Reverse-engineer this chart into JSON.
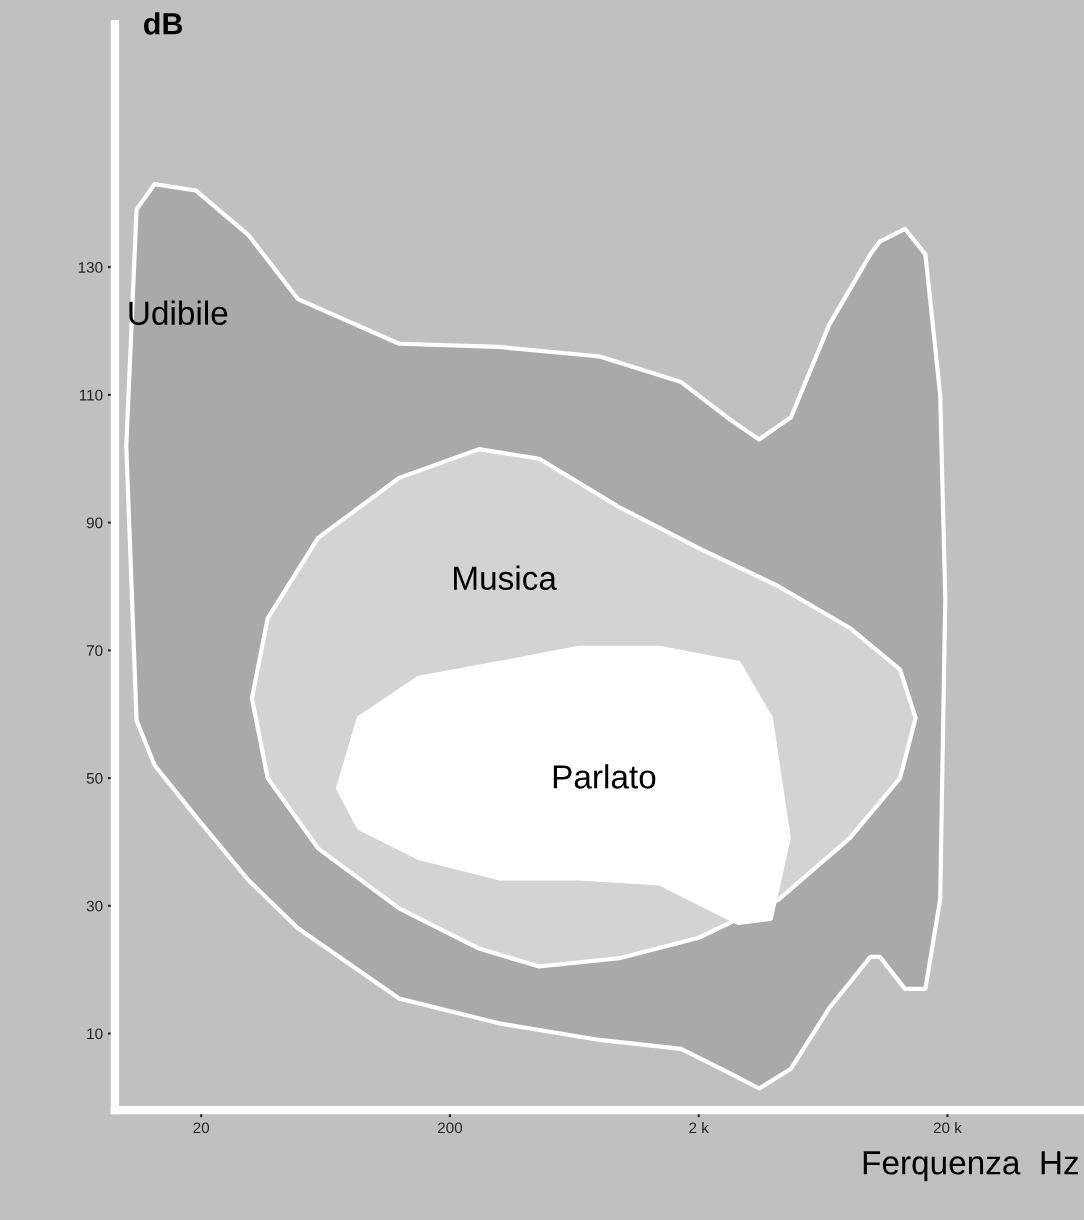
{
  "chart_data": {
    "type": "area",
    "xlabel": "Ferquenza  Hz",
    "ylabel": "dB",
    "log": "x",
    "xlim": [
      9,
      68000
    ],
    "ylim": [
      -2,
      168
    ],
    "xticks": [
      20,
      200,
      {
        "value": 2000,
        "label": "2 k"
      },
      {
        "value": 20000,
        "label": "20 k"
      }
    ],
    "yticks": [
      10,
      30,
      50,
      70,
      90,
      110,
      130
    ],
    "series": [
      {
        "name": "Udibile",
        "color": "#a9a9a9",
        "x": [
          10,
          11,
          13,
          19,
          31,
          49,
          125,
          315,
          800,
          1700,
          2700,
          3500,
          4700,
          6700,
          9800,
          10700,
          13500,
          16300,
          18700,
          19600,
          18700,
          16300,
          13500,
          10700,
          9800,
          6700,
          4700,
          3500,
          2700,
          1700,
          800,
          315,
          125,
          49,
          31,
          19,
          13,
          11
        ],
        "values": [
          102,
          139,
          143,
          142,
          135,
          125,
          118,
          117.5,
          116,
          112,
          106,
          103,
          106.5,
          121,
          132,
          134,
          136,
          132,
          110,
          78,
          31,
          17,
          17,
          22,
          22,
          14,
          4.5,
          1.4,
          3.7,
          7.6,
          9,
          11.6,
          15.5,
          26.5,
          34,
          44,
          52,
          59
        ]
      },
      {
        "name": "Musica",
        "color": "#d3d3d3",
        "x": [
          32,
          37,
          59,
          125,
          262,
          457,
          960,
          2000,
          4200,
          8100,
          12900,
          14900,
          12900,
          8100,
          4200,
          2000,
          960,
          457,
          262,
          125,
          59,
          37
        ],
        "values": [
          62.5,
          75,
          87.6,
          97,
          101.5,
          100,
          92.4,
          86,
          80,
          73.5,
          67,
          59.4,
          50,
          40.6,
          31,
          25,
          21.8,
          20.5,
          23.3,
          29.6,
          39,
          50
        ]
      },
      {
        "name": "Parlato",
        "color": "#ffffff",
        "x": [
          71,
          86,
          150,
          315,
          660,
          1390,
          2900,
          3900,
          4600,
          3900,
          2900,
          1390,
          660,
          315,
          150,
          86
        ],
        "values": [
          48.4,
          59.4,
          65.7,
          68,
          70.4,
          70.4,
          68,
          59.4,
          40.6,
          28,
          27.3,
          33.5,
          34.3,
          34.3,
          37.5,
          42.2
        ]
      }
    ]
  }
}
